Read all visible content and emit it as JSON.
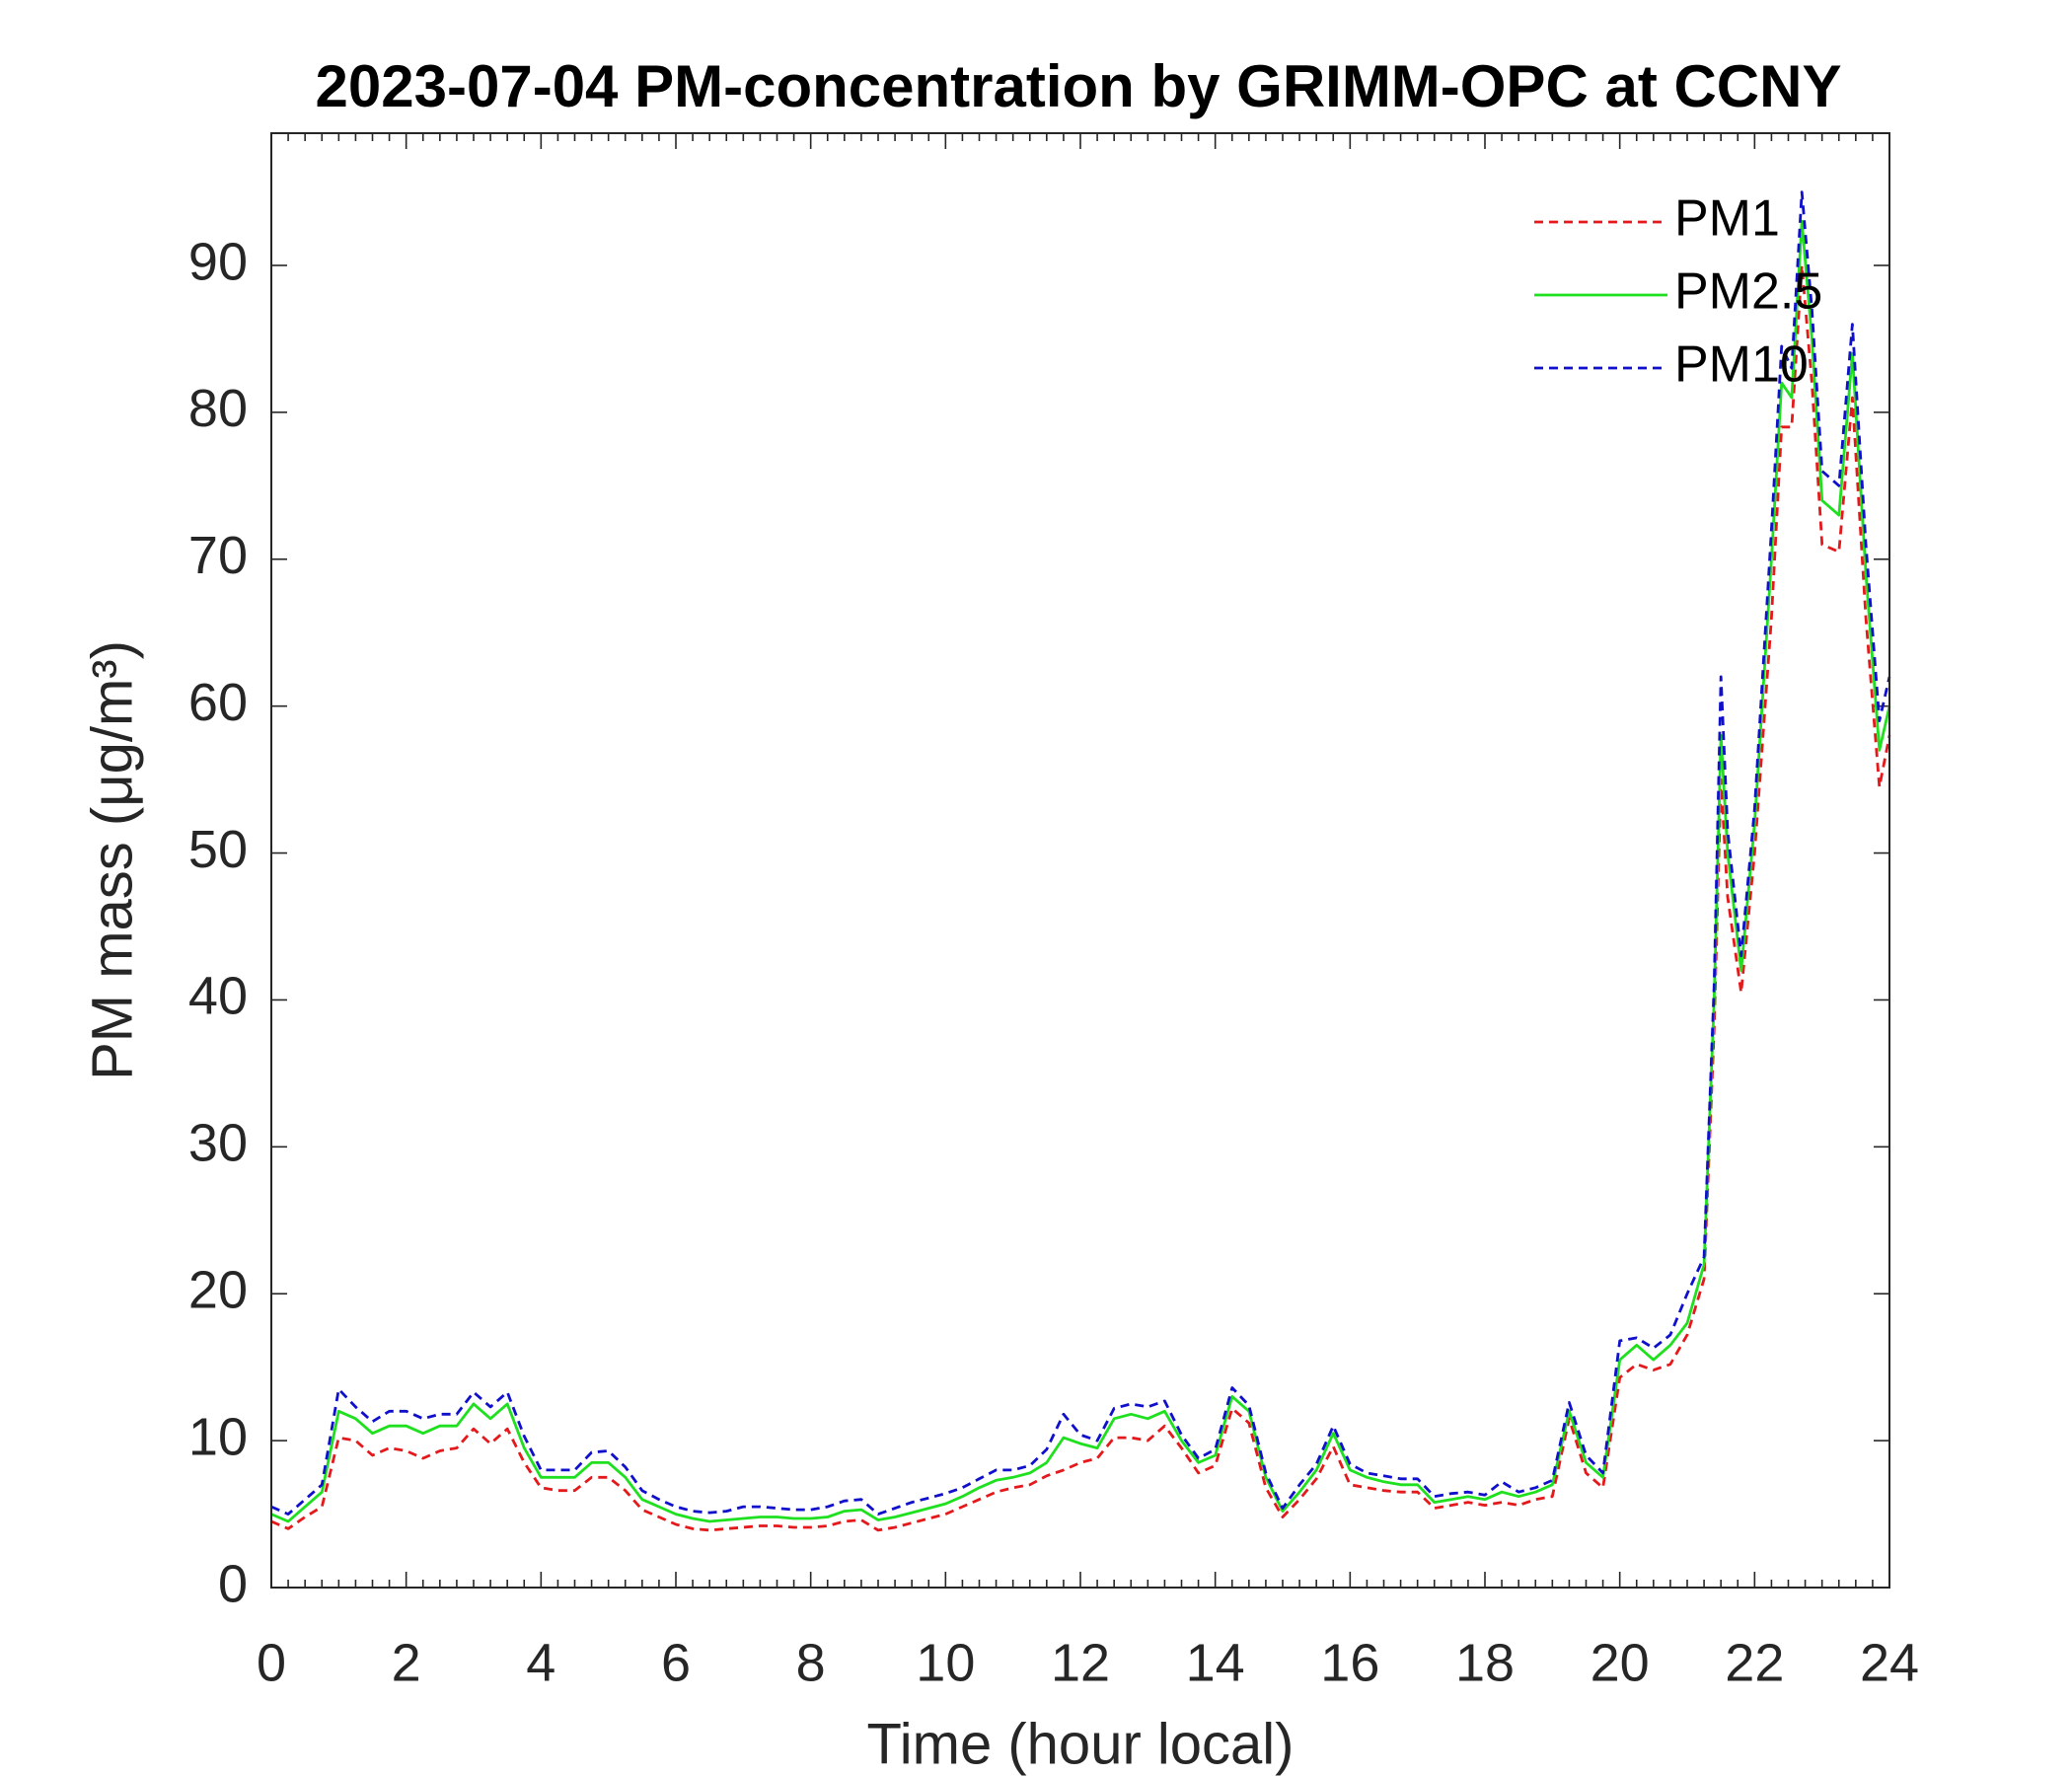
{
  "chart_data": {
    "type": "line",
    "title": "2023-07-04 PM-concentration by GRIMM-OPC at CCNY",
    "x_label": "Time (hour local)",
    "y_label": "PM mass (μg/m³)",
    "x": [
      0,
      0.25,
      0.5,
      0.75,
      1,
      1.25,
      1.5,
      1.75,
      2,
      2.25,
      2.5,
      2.75,
      3,
      3.25,
      3.5,
      3.75,
      4,
      4.25,
      4.5,
      4.75,
      5,
      5.25,
      5.5,
      5.75,
      6,
      6.25,
      6.5,
      6.75,
      7,
      7.25,
      7.5,
      7.75,
      8,
      8.25,
      8.5,
      8.75,
      9,
      9.25,
      9.5,
      9.75,
      10,
      10.25,
      10.5,
      10.75,
      11,
      11.25,
      11.5,
      11.75,
      12,
      12.25,
      12.5,
      12.75,
      13,
      13.25,
      13.5,
      13.75,
      14,
      14.25,
      14.5,
      14.75,
      15,
      15.25,
      15.5,
      15.75,
      16,
      16.25,
      16.5,
      16.75,
      17,
      17.25,
      17.5,
      17.75,
      18,
      18.25,
      18.5,
      18.75,
      19,
      19.25,
      19.5,
      19.75,
      20,
      20.25,
      20.5,
      20.75,
      21,
      21.25,
      21.4,
      21.5,
      21.6,
      21.8,
      22,
      22.25,
      22.4,
      22.55,
      22.7,
      22.85,
      23,
      23.25,
      23.45,
      23.65,
      23.85,
      24
    ],
    "series": [
      {
        "name": "PM1",
        "color": "#e3191c",
        "dash": true,
        "values": [
          4.5,
          4,
          4.8,
          5.5,
          10.2,
          10,
          9,
          9.5,
          9.3,
          8.8,
          9.3,
          9.5,
          10.8,
          9.8,
          10.8,
          8.5,
          6.8,
          6.6,
          6.6,
          7.5,
          7.5,
          6.6,
          5.3,
          4.8,
          4.3,
          4,
          3.9,
          4,
          4.1,
          4.2,
          4.2,
          4.1,
          4.1,
          4.2,
          4.5,
          4.6,
          3.9,
          4.1,
          4.4,
          4.7,
          5,
          5.5,
          6,
          6.5,
          6.8,
          7,
          7.6,
          8,
          8.5,
          8.8,
          10.2,
          10.2,
          10,
          11,
          9.5,
          7.8,
          8.3,
          12.2,
          11.2,
          6.8,
          4.8,
          6,
          7.4,
          9.6,
          7,
          6.8,
          6.6,
          6.5,
          6.5,
          5.4,
          5.6,
          5.8,
          5.6,
          5.8,
          5.6,
          6,
          6.2,
          11.5,
          7.8,
          6.8,
          14.3,
          15.2,
          14.8,
          15.2,
          17.2,
          21,
          38,
          55,
          47,
          40.5,
          50,
          66,
          79,
          79,
          90,
          82,
          71,
          70.5,
          81,
          66,
          54.5,
          58
        ]
      },
      {
        "name": "PM2.5",
        "color": "#1fe01f",
        "dash": false,
        "values": [
          5,
          4.5,
          5.5,
          6.5,
          12,
          11.5,
          10.5,
          11,
          11,
          10.5,
          11,
          11,
          12.5,
          11.5,
          12.5,
          9.5,
          7.5,
          7.5,
          7.5,
          8.5,
          8.5,
          7.5,
          6,
          5.5,
          5,
          4.7,
          4.5,
          4.6,
          4.7,
          4.8,
          4.8,
          4.7,
          4.7,
          4.8,
          5.2,
          5.3,
          4.6,
          4.8,
          5.1,
          5.4,
          5.7,
          6.2,
          6.8,
          7.3,
          7.5,
          7.8,
          8.5,
          10.2,
          9.8,
          9.5,
          11.5,
          11.8,
          11.5,
          12,
          10,
          8.5,
          9,
          13,
          12,
          7.5,
          5.2,
          6.5,
          8,
          10.5,
          8,
          7.5,
          7.2,
          7,
          7,
          5.8,
          6,
          6.2,
          6,
          6.5,
          6.2,
          6.5,
          7,
          12,
          8.5,
          7.5,
          15.5,
          16.5,
          15.5,
          16.5,
          18,
          22,
          40,
          58,
          50,
          42,
          52,
          70,
          82,
          81,
          93,
          85,
          74,
          73,
          84,
          69,
          57,
          60
        ]
      },
      {
        "name": "PM10",
        "color": "#1010cc",
        "dash": true,
        "values": [
          5.5,
          5,
          6,
          7,
          13.5,
          12.3,
          11.3,
          12,
          12,
          11.5,
          11.8,
          11.8,
          13.3,
          12.3,
          13.3,
          10.3,
          8,
          8,
          8,
          9.2,
          9.3,
          8.2,
          6.6,
          6,
          5.5,
          5.2,
          5.1,
          5.2,
          5.5,
          5.5,
          5.4,
          5.3,
          5.3,
          5.5,
          5.9,
          6,
          5,
          5.4,
          5.8,
          6.1,
          6.4,
          6.8,
          7.4,
          8,
          8,
          8.3,
          9.4,
          11.8,
          10.4,
          10,
          12.2,
          12.5,
          12.3,
          12.7,
          10.4,
          8.8,
          9.4,
          13.6,
          12.4,
          7.8,
          5.4,
          7,
          8.4,
          11,
          8.4,
          7.8,
          7.6,
          7.4,
          7.4,
          6.2,
          6.4,
          6.5,
          6.3,
          7.2,
          6.5,
          6.8,
          7.3,
          12.6,
          9,
          7.8,
          16.8,
          17,
          16.3,
          17.2,
          20,
          22.5,
          41,
          62,
          51.5,
          43,
          53,
          72,
          84.5,
          83,
          95,
          87,
          76,
          75,
          86,
          71,
          59,
          62
        ]
      }
    ],
    "xlim": [
      0,
      24
    ],
    "xticks": [
      0,
      2,
      4,
      6,
      8,
      10,
      12,
      14,
      16,
      18,
      20,
      22,
      24
    ],
    "ylim": [
      0,
      99
    ],
    "yticks": [
      0,
      10,
      20,
      30,
      40,
      50,
      60,
      70,
      80,
      90
    ],
    "legend": "upper right",
    "grid": false
  }
}
